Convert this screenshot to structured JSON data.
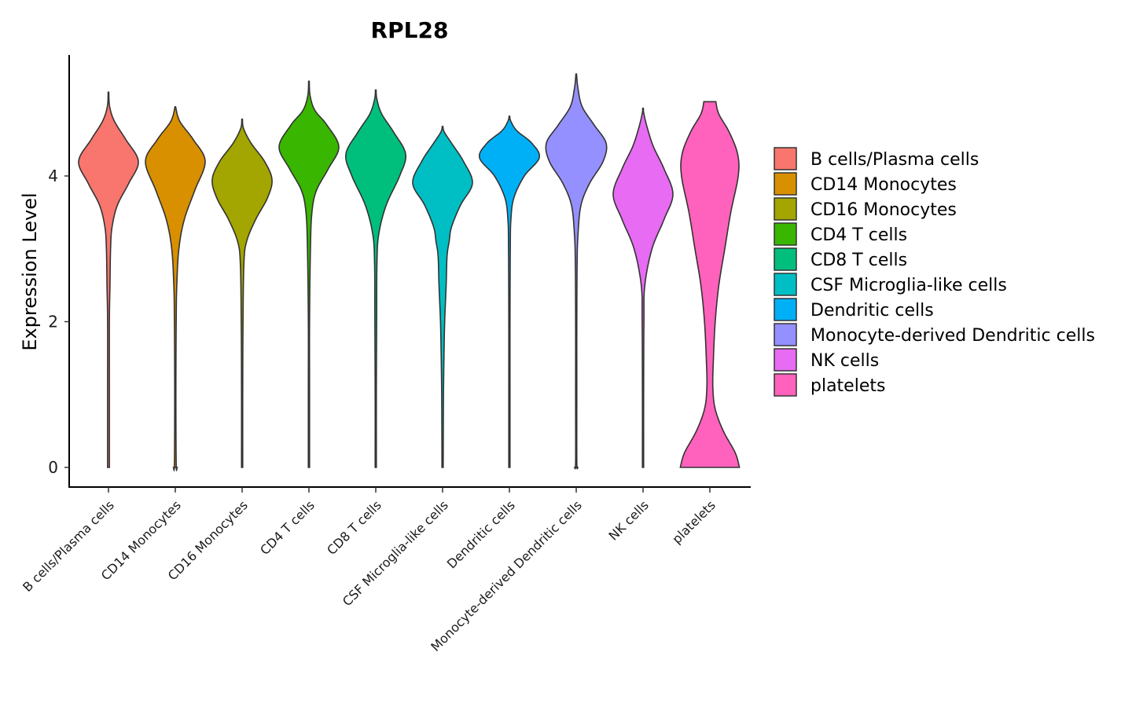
{
  "chart_data": {
    "type": "violin",
    "title": "RPL28",
    "xlabel": "",
    "ylabel": "Expression Level",
    "ylim": [
      -0.25,
      5.65
    ],
    "yticks": [
      "0",
      "2",
      "4"
    ],
    "yticks_values": [
      0,
      2,
      4
    ],
    "legend_position": "right",
    "categories": [
      "B cells/Plasma cells",
      "CD14 Monocytes",
      "CD16 Monocytes",
      "CD4 T cells",
      "CD8 T cells",
      "CSF Microglia-like cells",
      "Dendritic cells",
      "Monocyte-derived Dendritic cells",
      "NK cells",
      "platelets"
    ],
    "colors": [
      "#F8766D",
      "#D89000",
      "#A3A500",
      "#39B600",
      "#00BF7D",
      "#00BFC4",
      "#00B0F6",
      "#9590FF",
      "#E76BF3",
      "#FF62BC"
    ],
    "series": [
      {
        "name": "B cells/Plasma cells",
        "min": 0,
        "max": 5.15,
        "density": [
          [
            0,
            0.03
          ],
          [
            1,
            0.03
          ],
          [
            2,
            0.03
          ],
          [
            2.5,
            0.05
          ],
          [
            3,
            0.07
          ],
          [
            3.3,
            0.12
          ],
          [
            3.6,
            0.3
          ],
          [
            3.9,
            0.68
          ],
          [
            4.2,
            1.0
          ],
          [
            4.5,
            0.58
          ],
          [
            4.75,
            0.2
          ],
          [
            4.95,
            0.04
          ],
          [
            5.15,
            0.01
          ]
        ]
      },
      {
        "name": "CD14 Monocytes",
        "min": 0,
        "max": 4.95,
        "density": [
          [
            0,
            0.06
          ],
          [
            0.05,
            0.03
          ],
          [
            1,
            0.02
          ],
          [
            2,
            0.03
          ],
          [
            2.5,
            0.05
          ],
          [
            3,
            0.12
          ],
          [
            3.4,
            0.3
          ],
          [
            3.8,
            0.65
          ],
          [
            4.2,
            1.0
          ],
          [
            4.5,
            0.6
          ],
          [
            4.75,
            0.15
          ],
          [
            4.95,
            0.01
          ]
        ]
      },
      {
        "name": "CD16 Monocytes",
        "min": 0,
        "max": 4.78,
        "density": [
          [
            0,
            0.02
          ],
          [
            1,
            0.02
          ],
          [
            2,
            0.03
          ],
          [
            2.8,
            0.06
          ],
          [
            3.1,
            0.15
          ],
          [
            3.4,
            0.45
          ],
          [
            3.7,
            0.85
          ],
          [
            3.95,
            1.0
          ],
          [
            4.2,
            0.75
          ],
          [
            4.45,
            0.3
          ],
          [
            4.65,
            0.05
          ],
          [
            4.78,
            0.01
          ]
        ]
      },
      {
        "name": "CD4 T cells",
        "min": 0,
        "max": 5.3,
        "density": [
          [
            0,
            0.02
          ],
          [
            1,
            0.02
          ],
          [
            2,
            0.02
          ],
          [
            3,
            0.05
          ],
          [
            3.5,
            0.1
          ],
          [
            3.8,
            0.25
          ],
          [
            4.1,
            0.65
          ],
          [
            4.4,
            1.0
          ],
          [
            4.7,
            0.6
          ],
          [
            4.9,
            0.2
          ],
          [
            5.1,
            0.04
          ],
          [
            5.3,
            0.01
          ]
        ]
      },
      {
        "name": "CD8 T cells",
        "min": 0,
        "max": 5.18,
        "density": [
          [
            0,
            0.02
          ],
          [
            1,
            0.02
          ],
          [
            2,
            0.03
          ],
          [
            2.8,
            0.04
          ],
          [
            3.2,
            0.1
          ],
          [
            3.6,
            0.35
          ],
          [
            4.0,
            0.8
          ],
          [
            4.3,
            1.0
          ],
          [
            4.6,
            0.6
          ],
          [
            4.85,
            0.2
          ],
          [
            5.05,
            0.04
          ],
          [
            5.18,
            0.01
          ]
        ]
      },
      {
        "name": "CSF Microglia-like cells",
        "min": 0,
        "max": 4.68,
        "density": [
          [
            0,
            0.02
          ],
          [
            1,
            0.03
          ],
          [
            1.6,
            0.05
          ],
          [
            2.0,
            0.07
          ],
          [
            2.5,
            0.12
          ],
          [
            2.9,
            0.15
          ],
          [
            3.1,
            0.22
          ],
          [
            3.3,
            0.3
          ],
          [
            3.6,
            0.6
          ],
          [
            3.9,
            1.0
          ],
          [
            4.2,
            0.7
          ],
          [
            4.45,
            0.3
          ],
          [
            4.6,
            0.06
          ],
          [
            4.68,
            0.01
          ]
        ]
      },
      {
        "name": "Dendritic cells",
        "min": 0,
        "max": 4.82,
        "density": [
          [
            0,
            0.02
          ],
          [
            1,
            0.02
          ],
          [
            2,
            0.02
          ],
          [
            3,
            0.03
          ],
          [
            3.4,
            0.05
          ],
          [
            3.7,
            0.15
          ],
          [
            4.0,
            0.5
          ],
          [
            4.25,
            1.0
          ],
          [
            4.45,
            0.75
          ],
          [
            4.62,
            0.25
          ],
          [
            4.75,
            0.05
          ],
          [
            4.82,
            0.01
          ]
        ]
      },
      {
        "name": "Monocyte-derived Dendritic cells",
        "min": 0,
        "max": 5.4,
        "density": [
          [
            0,
            0.05
          ],
          [
            0.08,
            0.02
          ],
          [
            1,
            0.02
          ],
          [
            2,
            0.02
          ],
          [
            2.8,
            0.03
          ],
          [
            3.2,
            0.06
          ],
          [
            3.6,
            0.16
          ],
          [
            3.9,
            0.45
          ],
          [
            4.2,
            0.9
          ],
          [
            4.45,
            1.0
          ],
          [
            4.7,
            0.6
          ],
          [
            4.95,
            0.2
          ],
          [
            5.2,
            0.06
          ],
          [
            5.4,
            0.01
          ]
        ]
      },
      {
        "name": "NK cells",
        "min": 0,
        "max": 4.93,
        "density": [
          [
            0,
            0.02
          ],
          [
            1,
            0.02
          ],
          [
            2.0,
            0.03
          ],
          [
            2.5,
            0.06
          ],
          [
            3.0,
            0.3
          ],
          [
            3.4,
            0.7
          ],
          [
            3.75,
            1.0
          ],
          [
            4.1,
            0.7
          ],
          [
            4.4,
            0.35
          ],
          [
            4.65,
            0.15
          ],
          [
            4.85,
            0.03
          ],
          [
            4.93,
            0.01
          ]
        ]
      },
      {
        "name": "platelets",
        "min": 0,
        "max": 5.02,
        "density": [
          [
            0,
            0.99
          ],
          [
            0.2,
            0.85
          ],
          [
            0.5,
            0.45
          ],
          [
            0.8,
            0.18
          ],
          [
            1.1,
            0.1
          ],
          [
            1.5,
            0.12
          ],
          [
            2.0,
            0.18
          ],
          [
            2.5,
            0.3
          ],
          [
            3.0,
            0.5
          ],
          [
            3.5,
            0.7
          ],
          [
            4.0,
            0.95
          ],
          [
            4.3,
            0.93
          ],
          [
            4.6,
            0.65
          ],
          [
            4.85,
            0.3
          ],
          [
            5.02,
            0.2
          ]
        ]
      }
    ]
  }
}
